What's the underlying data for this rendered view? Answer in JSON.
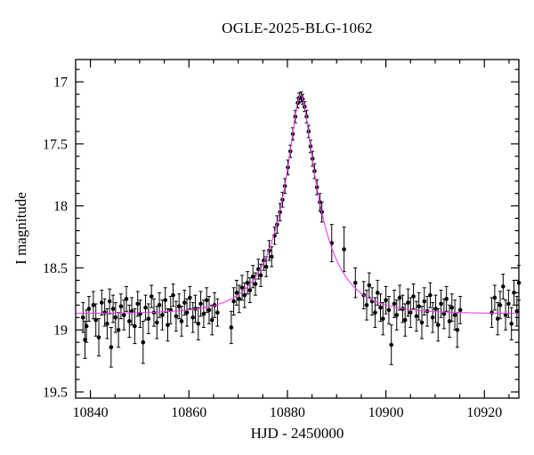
{
  "chart_data": {
    "type": "scatter",
    "title": "OGLE-2025-BLG-1062",
    "xlabel": "HJD - 2450000",
    "ylabel": "I magnitude",
    "xlim": [
      10837,
      10927
    ],
    "ylim_mag": [
      19.55,
      16.82
    ],
    "x_major_ticks": [
      10840,
      10860,
      10880,
      10900,
      10920
    ],
    "x_minor_step": 5,
    "y_major_ticks": [
      17,
      17.5,
      18,
      18.5,
      19,
      19.5
    ],
    "y_minor_step": 0.1,
    "grid": false,
    "legend": "none",
    "point_color": "#000000",
    "model_color": "#ee3cee",
    "model": {
      "t0": 10882.7,
      "tE": 9.0,
      "u0": 0.2,
      "baseline_mag": 18.87
    },
    "points": [
      [
        10838.5,
        18.9,
        0.12
      ],
      [
        10838.9,
        19.08,
        0.15
      ],
      [
        10839.2,
        18.97,
        0.13
      ],
      [
        10839.7,
        18.83,
        0.1
      ],
      [
        10840.6,
        18.8,
        0.11
      ],
      [
        10841.1,
        18.92,
        0.13
      ],
      [
        10841.7,
        19.06,
        0.15
      ],
      [
        10842.3,
        18.78,
        0.1
      ],
      [
        10842.9,
        18.86,
        0.11
      ],
      [
        10843.4,
        18.95,
        0.12
      ],
      [
        10843.9,
        18.77,
        0.1
      ],
      [
        10844.2,
        19.14,
        0.16
      ],
      [
        10844.6,
        18.83,
        0.11
      ],
      [
        10845.1,
        18.9,
        0.12
      ],
      [
        10845.7,
        19.0,
        0.14
      ],
      [
        10846.2,
        18.81,
        0.1
      ],
      [
        10846.8,
        18.88,
        0.12
      ],
      [
        10847.3,
        18.75,
        0.1
      ],
      [
        10847.9,
        18.93,
        0.13
      ],
      [
        10848.4,
        18.85,
        0.11
      ],
      [
        10849.0,
        18.97,
        0.14
      ],
      [
        10849.6,
        18.79,
        0.1
      ],
      [
        10850.1,
        18.87,
        0.11
      ],
      [
        10850.7,
        19.1,
        0.17
      ],
      [
        10851.2,
        18.82,
        0.1
      ],
      [
        10851.8,
        18.91,
        0.12
      ],
      [
        10852.4,
        18.73,
        0.09
      ],
      [
        10852.9,
        18.86,
        0.11
      ],
      [
        10853.5,
        18.94,
        0.13
      ],
      [
        10854.0,
        18.8,
        0.1
      ],
      [
        10854.6,
        18.88,
        0.12
      ],
      [
        10855.2,
        18.76,
        0.1
      ],
      [
        10855.7,
        18.96,
        0.13
      ],
      [
        10856.3,
        18.84,
        0.11
      ],
      [
        10856.8,
        18.72,
        0.09
      ],
      [
        10857.4,
        18.89,
        0.12
      ],
      [
        10858.0,
        18.81,
        0.1
      ],
      [
        10858.5,
        18.93,
        0.12
      ],
      [
        10859.1,
        18.78,
        0.1
      ],
      [
        10859.6,
        18.86,
        0.11
      ],
      [
        10860.2,
        18.74,
        0.09
      ],
      [
        10860.8,
        18.9,
        0.12
      ],
      [
        10861.3,
        18.83,
        0.11
      ],
      [
        10861.9,
        18.95,
        0.13
      ],
      [
        10862.4,
        18.79,
        0.1
      ],
      [
        10863.0,
        18.87,
        0.11
      ],
      [
        10863.6,
        18.76,
        0.1
      ],
      [
        10864.1,
        18.84,
        0.11
      ],
      [
        10864.7,
        18.92,
        0.12
      ],
      [
        10865.2,
        18.8,
        0.1
      ],
      [
        10865.8,
        18.86,
        0.11
      ],
      [
        10868.6,
        18.98,
        0.13
      ],
      [
        10869.1,
        18.77,
        0.11
      ],
      [
        10869.7,
        18.7,
        0.1
      ],
      [
        10870.2,
        18.75,
        0.11
      ],
      [
        10870.8,
        18.66,
        0.1
      ],
      [
        10871.3,
        18.72,
        0.1
      ],
      [
        10871.9,
        18.62,
        0.09
      ],
      [
        10872.4,
        18.68,
        0.1
      ],
      [
        10873.0,
        18.57,
        0.09
      ],
      [
        10873.5,
        18.63,
        0.09
      ],
      [
        10874.1,
        18.51,
        0.08
      ],
      [
        10874.6,
        18.56,
        0.09
      ],
      [
        10875.2,
        18.44,
        0.08
      ],
      [
        10875.7,
        18.49,
        0.08
      ],
      [
        10876.3,
        18.36,
        0.08
      ],
      [
        10876.8,
        18.41,
        0.08
      ],
      [
        10877.4,
        18.24,
        0.07
      ],
      [
        10877.9,
        18.15,
        0.07
      ],
      [
        10878.5,
        18.05,
        0.07
      ],
      [
        10879.0,
        17.95,
        0.06
      ],
      [
        10879.5,
        17.84,
        0.06
      ],
      [
        10880.1,
        17.69,
        0.06
      ],
      [
        10880.6,
        17.56,
        0.05
      ],
      [
        10881.1,
        17.42,
        0.05
      ],
      [
        10881.6,
        17.28,
        0.05
      ],
      [
        10882.1,
        17.17,
        0.04
      ],
      [
        10882.4,
        17.13,
        0.04
      ],
      [
        10882.8,
        17.12,
        0.04
      ],
      [
        10883.1,
        17.14,
        0.04
      ],
      [
        10883.5,
        17.2,
        0.04
      ],
      [
        10883.9,
        17.28,
        0.05
      ],
      [
        10884.3,
        17.4,
        0.05
      ],
      [
        10884.7,
        17.52,
        0.05
      ],
      [
        10885.1,
        17.62,
        0.06
      ],
      [
        10885.5,
        17.72,
        0.06
      ],
      [
        10886.0,
        17.85,
        0.06
      ],
      [
        10886.6,
        17.97,
        0.07
      ],
      [
        10887.0,
        18.05,
        0.08
      ],
      [
        10889.0,
        18.3,
        0.15
      ],
      [
        10891.5,
        18.35,
        0.18
      ],
      [
        10893.8,
        18.62,
        0.12
      ],
      [
        10895.5,
        18.72,
        0.11
      ],
      [
        10896.1,
        18.8,
        0.12
      ],
      [
        10896.6,
        18.64,
        0.1
      ],
      [
        10897.2,
        18.77,
        0.11
      ],
      [
        10897.8,
        18.86,
        0.12
      ],
      [
        10898.3,
        18.7,
        0.1
      ],
      [
        10898.9,
        18.82,
        0.11
      ],
      [
        10899.4,
        18.91,
        0.13
      ],
      [
        10900.0,
        18.76,
        0.11
      ],
      [
        10900.6,
        18.84,
        0.11
      ],
      [
        10901.1,
        19.12,
        0.16
      ],
      [
        10901.7,
        18.79,
        0.11
      ],
      [
        10902.2,
        18.88,
        0.12
      ],
      [
        10902.8,
        18.74,
        0.1
      ],
      [
        10903.4,
        18.83,
        0.11
      ],
      [
        10903.9,
        18.92,
        0.13
      ],
      [
        10904.5,
        18.78,
        0.11
      ],
      [
        10905.0,
        18.86,
        0.12
      ],
      [
        10905.6,
        18.73,
        0.1
      ],
      [
        10906.2,
        18.89,
        0.12
      ],
      [
        10906.7,
        18.81,
        0.11
      ],
      [
        10907.3,
        18.94,
        0.13
      ],
      [
        10907.8,
        18.77,
        0.11
      ],
      [
        10908.4,
        18.85,
        0.12
      ],
      [
        10909.0,
        18.72,
        0.1
      ],
      [
        10909.5,
        18.9,
        0.12
      ],
      [
        10910.1,
        18.83,
        0.11
      ],
      [
        10910.6,
        18.96,
        0.13
      ],
      [
        10911.2,
        18.79,
        0.11
      ],
      [
        10911.8,
        18.87,
        0.12
      ],
      [
        10912.3,
        18.75,
        0.1
      ],
      [
        10912.9,
        18.93,
        0.13
      ],
      [
        10913.4,
        18.82,
        0.11
      ],
      [
        10914.0,
        18.88,
        0.12
      ],
      [
        10914.5,
        19.0,
        0.14
      ],
      [
        10915.1,
        18.84,
        0.11
      ],
      [
        10921.5,
        18.86,
        0.12
      ],
      [
        10922.1,
        18.74,
        0.1
      ],
      [
        10922.7,
        18.91,
        0.13
      ],
      [
        10923.2,
        18.8,
        0.11
      ],
      [
        10923.8,
        18.65,
        0.1
      ],
      [
        10924.3,
        18.88,
        0.12
      ],
      [
        10924.9,
        18.79,
        0.11
      ],
      [
        10925.5,
        18.95,
        0.13
      ],
      [
        10926.0,
        18.7,
        0.1
      ],
      [
        10926.6,
        18.85,
        0.12
      ],
      [
        10927.0,
        18.62,
        0.14
      ]
    ]
  }
}
